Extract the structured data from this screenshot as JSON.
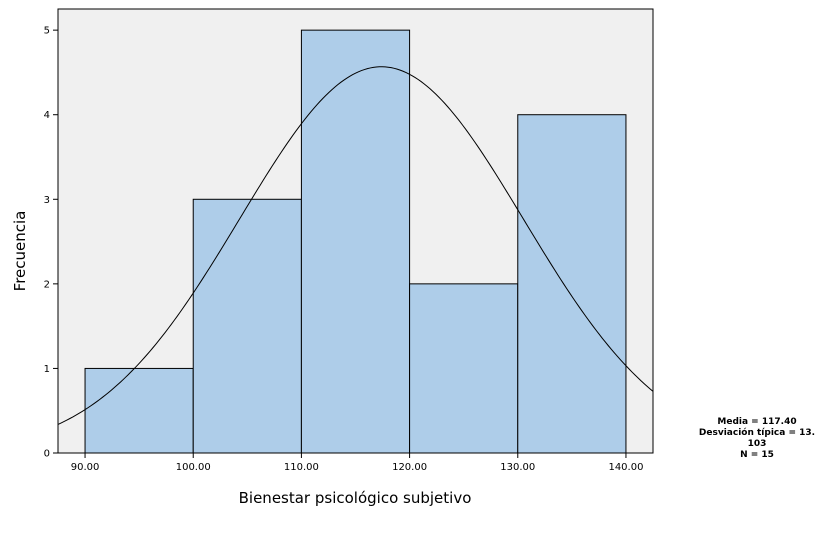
{
  "chart_data": {
    "type": "histogram",
    "xlabel": "Bienestar psicológico subjetivo",
    "ylabel": "Frecuencia",
    "xlim": [
      87.5,
      142.5
    ],
    "ylim": [
      0,
      5.25
    ],
    "x_ticks": [
      "90.00",
      "100.00",
      "110.00",
      "120.00",
      "130.00",
      "140.00"
    ],
    "y_ticks": [
      "0",
      "1",
      "2",
      "3",
      "4",
      "5"
    ],
    "bins": [
      {
        "start": 90,
        "end": 100,
        "count": 1
      },
      {
        "start": 100,
        "end": 110,
        "count": 3
      },
      {
        "start": 110,
        "end": 120,
        "count": 5
      },
      {
        "start": 120,
        "end": 130,
        "count": 2
      },
      {
        "start": 130,
        "end": 140,
        "count": 4
      }
    ],
    "normal_curve": {
      "mean": 117.4,
      "sd": 13.103,
      "n": 15,
      "bin_width": 10
    },
    "colors": {
      "plot_background": "#f0f0f0",
      "bar_fill": "#aecde9",
      "bar_stroke": "#000000",
      "curve": "#000000"
    },
    "grid": false
  },
  "stats": {
    "mean_line": "Media = 117.40",
    "sd_line": "Desviación típica = 13.",
    "sd_line_cont": "103",
    "n_line": "N = 15"
  }
}
